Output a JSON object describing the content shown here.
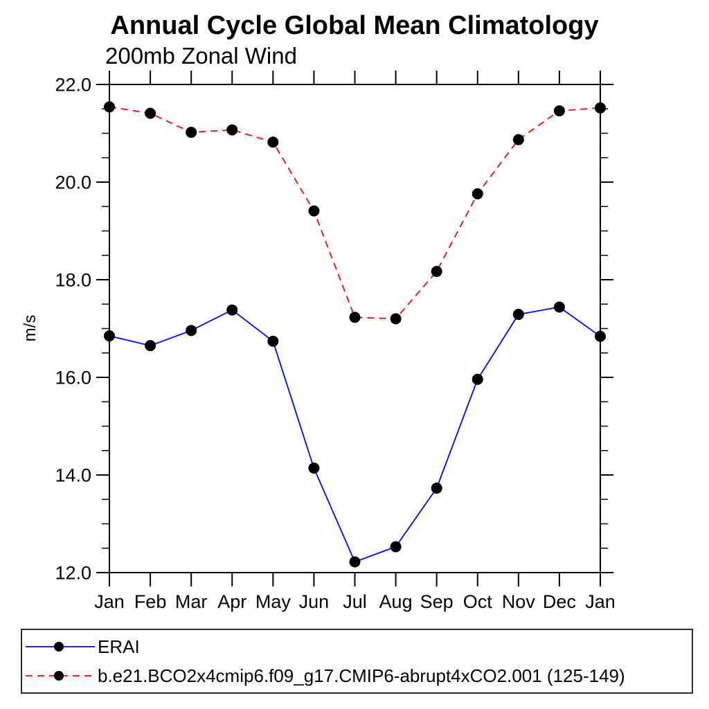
{
  "page": {
    "background": "#ffffff"
  },
  "chart_data": {
    "type": "line",
    "title": "Annual Cycle Global Mean Climatology",
    "subtitle": "200mb Zonal Wind",
    "ylabel": "m/s",
    "xlabel": "",
    "categories": [
      "Jan",
      "Feb",
      "Mar",
      "Apr",
      "May",
      "Jun",
      "Jul",
      "Aug",
      "Sep",
      "Oct",
      "Nov",
      "Dec",
      "Jan"
    ],
    "ylim": [
      12.0,
      22.0
    ],
    "yticks": [
      12,
      14,
      16,
      18,
      20,
      22
    ],
    "ytick_labels": [
      "12.0",
      "14.0",
      "16.0",
      "18.0",
      "20.0",
      "22.0"
    ],
    "yminor_step": 0.5,
    "grid": false,
    "axis_color": "#000000",
    "marker": "filled-circle",
    "marker_color": "#000000",
    "legend_position": "bottom-box",
    "series": [
      {
        "name": "ERAI",
        "color": "#0000ff",
        "line_style": "solid",
        "values": [
          16.85,
          16.65,
          16.96,
          17.38,
          16.74,
          14.14,
          12.22,
          12.53,
          13.73,
          15.96,
          17.29,
          17.44,
          16.84
        ]
      },
      {
        "name": "b.e21.BCO2x4cmip6.f09_g17.CMIP6-abrupt4xCO2.001 (125-149)",
        "color": "#ff0000",
        "line_style": "dashed",
        "values": [
          21.54,
          21.41,
          21.02,
          21.07,
          20.82,
          19.41,
          17.23,
          17.2,
          18.17,
          19.76,
          20.87,
          21.46,
          21.52
        ]
      }
    ]
  }
}
